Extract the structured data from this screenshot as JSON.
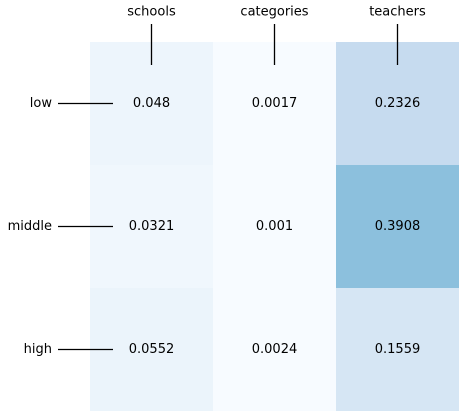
{
  "chart_data": {
    "type": "heatmap",
    "title": "",
    "xlabel": "",
    "ylabel": "",
    "x_categories": [
      "schools",
      "categories",
      "teachers"
    ],
    "y_categories": [
      "low",
      "middle",
      "high"
    ],
    "values": [
      [
        0.048,
        0.0017,
        0.2326
      ],
      [
        0.0321,
        0.001,
        0.3908
      ],
      [
        0.0552,
        0.0024,
        0.1559
      ]
    ],
    "value_labels": [
      [
        "0.048",
        "0.0017",
        "0.2326"
      ],
      [
        "0.0321",
        "0.001",
        "0.3908"
      ],
      [
        "0.0552",
        "0.0024",
        "0.1559"
      ]
    ],
    "colormap": "Blues",
    "x_axis_position": "top",
    "grid": false,
    "legend": "none"
  }
}
